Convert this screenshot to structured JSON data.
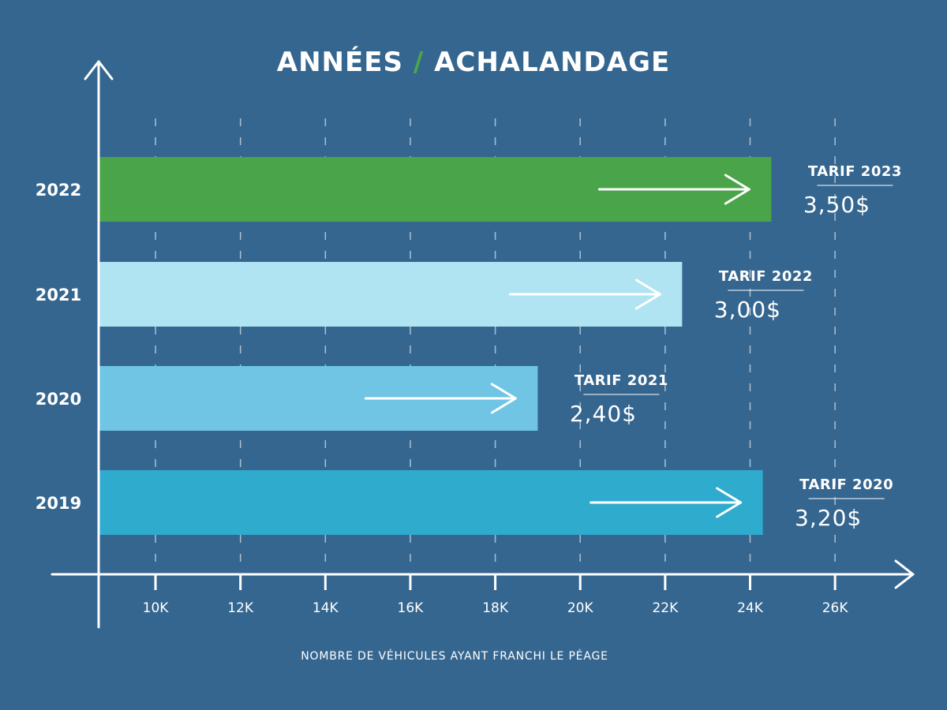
{
  "chart_data": {
    "type": "bar",
    "orientation": "horizontal",
    "title": [
      "ANNÉES",
      "/",
      "ACHALANDAGE"
    ],
    "title_colors": [
      "#ffffff",
      "#4ea64a",
      "#ffffff"
    ],
    "x_label": "NOMBRE DE VÉHICULES AYANT FRANCHI LE PÉAGE",
    "categories": [
      "2022",
      "2021",
      "2020",
      "2019"
    ],
    "values": [
      24500,
      22400,
      19000,
      24300
    ],
    "colors": [
      "#4aa449",
      "#b0e4f2",
      "#6fc5e3",
      "#2fabcd"
    ],
    "annotations": [
      {
        "label": "TARIF 2023",
        "text": "3,50$"
      },
      {
        "label": "TARIF 2022",
        "text": "3,00$"
      },
      {
        "label": "TARIF 2021",
        "text": "2,40$"
      },
      {
        "label": "TARIF 2020",
        "text": "3,20$"
      }
    ],
    "xlim": [
      8680,
      27800
    ],
    "xticks": [
      {
        "value": 10000,
        "label": "10K"
      },
      {
        "value": 12000,
        "label": "12K"
      },
      {
        "value": 14000,
        "label": "14K"
      },
      {
        "value": 16000,
        "label": "16K"
      },
      {
        "value": 18000,
        "label": "18K"
      },
      {
        "value": 20000,
        "label": "20K"
      },
      {
        "value": 22000,
        "label": "22K"
      },
      {
        "value": 24000,
        "label": "24K"
      },
      {
        "value": 26000,
        "label": "26K"
      }
    ],
    "grid": true
  }
}
